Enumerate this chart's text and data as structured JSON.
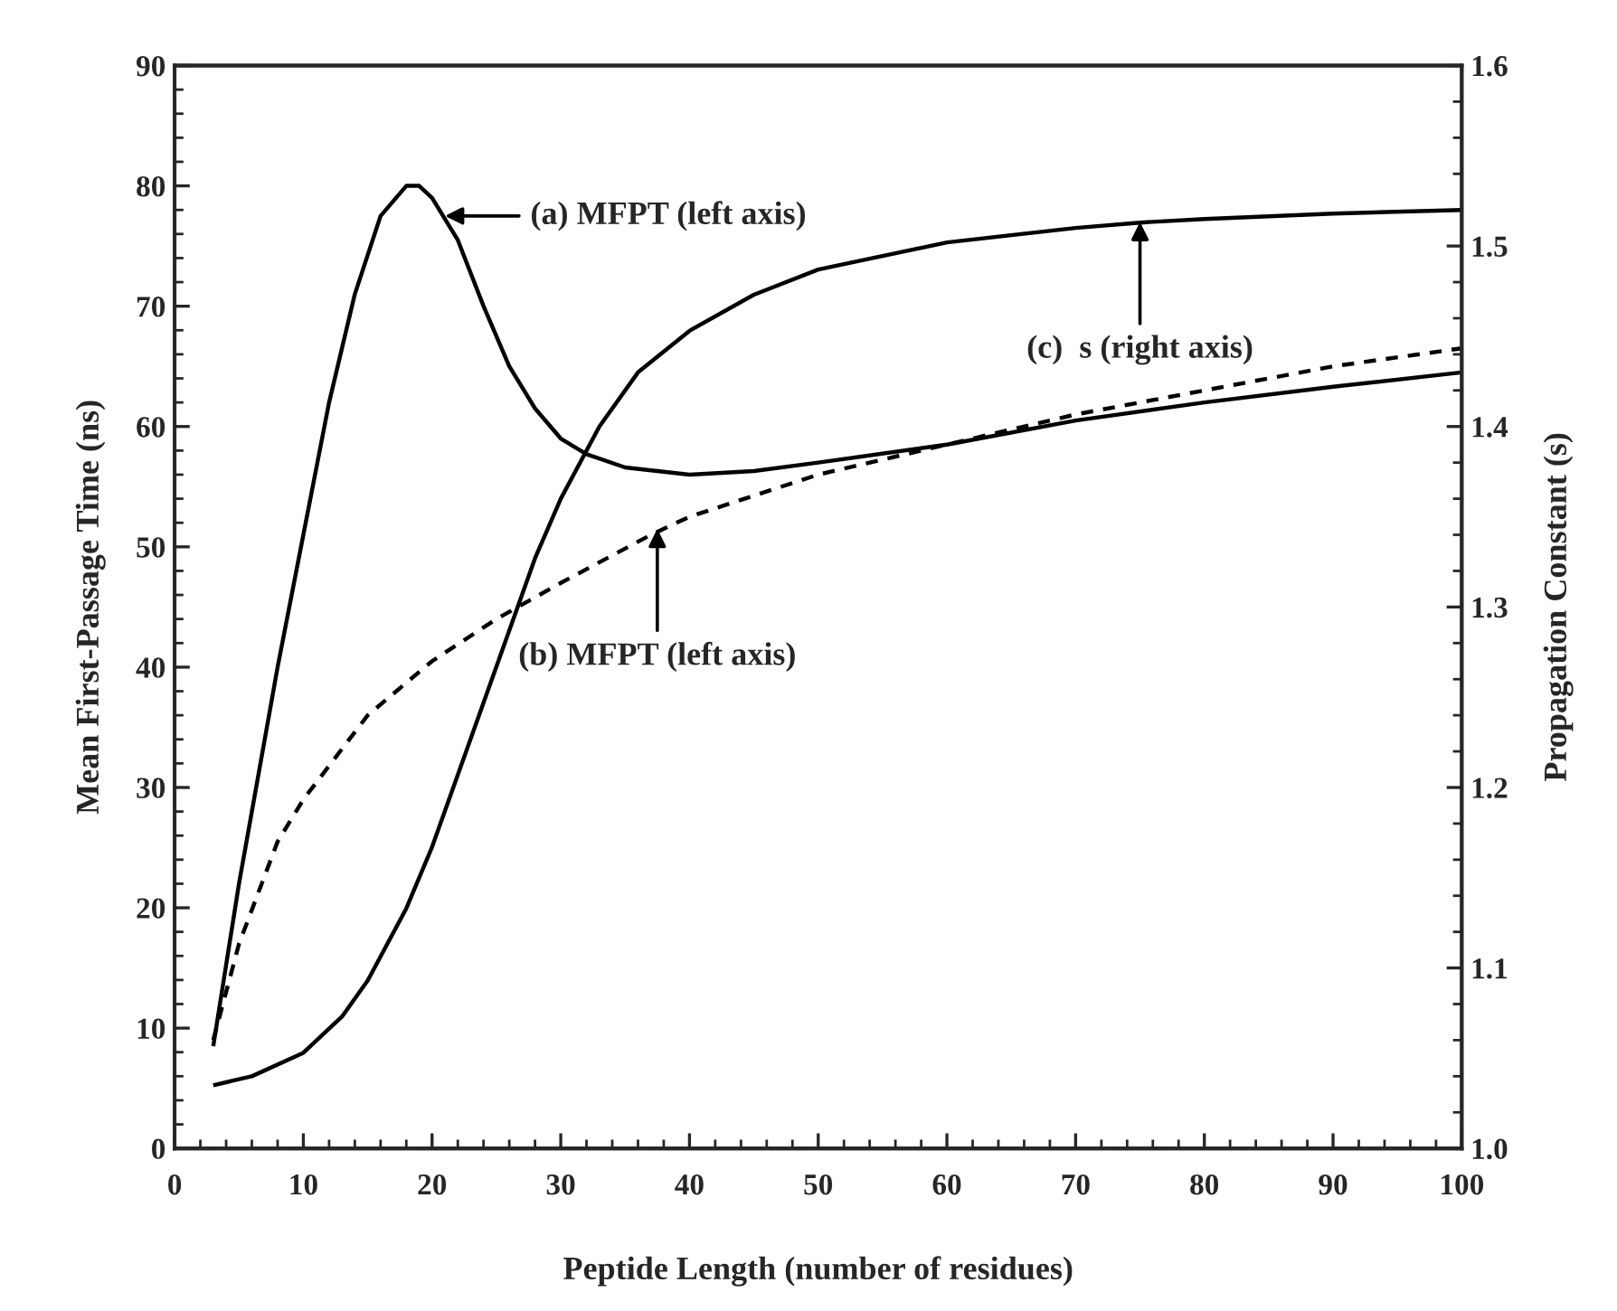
{
  "chart_data": {
    "type": "line",
    "xlabel": "Peptide Length (number of residues)",
    "ylabel": "Mean First-Passage Time (ns)",
    "y2label": "Propagation Constant (s)",
    "xlim": [
      0,
      100
    ],
    "xticks": [
      0,
      10,
      20,
      30,
      40,
      50,
      60,
      70,
      80,
      90,
      100
    ],
    "ylim": [
      0,
      90
    ],
    "yticks": [
      0,
      10,
      20,
      30,
      40,
      50,
      60,
      70,
      80,
      90
    ],
    "y2lim": [
      1.0,
      1.6
    ],
    "y2ticks": [
      {
        "value": 1.0,
        "label": "1.0"
      },
      {
        "value": 1.1,
        "label": "1.1"
      },
      {
        "value": 1.2,
        "label": "1.2"
      },
      {
        "value": 1.3,
        "label": "1.3"
      },
      {
        "value": 1.4,
        "label": "1.4"
      },
      {
        "value": 1.5,
        "label": "1.5"
      },
      {
        "value": 1.6,
        "label": "1.6"
      }
    ],
    "grid": false,
    "legend": false,
    "marker": "none",
    "series": [
      {
        "color": "#000000",
        "line_style": "solid",
        "x": [
          3,
          5,
          8,
          10,
          12,
          14,
          16,
          18,
          19,
          20,
          22,
          24,
          26,
          28,
          30,
          32,
          35,
          40,
          45,
          50,
          60,
          70,
          80,
          90,
          100
        ],
        "values": [
          8.5,
          22,
          40,
          51,
          62,
          71,
          77.5,
          80,
          80,
          79,
          75.5,
          70,
          65,
          61.5,
          59,
          57.7,
          56.6,
          56,
          56.3,
          57,
          58.5,
          60.5,
          62,
          63.3,
          64.5
        ]
      },
      {
        "color": "#000000",
        "line_style": "dashed",
        "x": [
          3,
          5,
          8,
          10,
          15,
          20,
          25,
          30,
          37,
          40,
          50,
          60,
          70,
          80,
          90,
          100
        ],
        "values": [
          9,
          17,
          25.5,
          29,
          36,
          40.5,
          44,
          47,
          51,
          52.5,
          56,
          58.5,
          61,
          63,
          65,
          66.5
        ]
      },
      {
        "color": "#000000",
        "line_style": "solid",
        "axis": "y2",
        "x": [
          3,
          6,
          10,
          13,
          15,
          18,
          20,
          22,
          25,
          28,
          30,
          33,
          36,
          40,
          45,
          50,
          60,
          70,
          75,
          80,
          90,
          100
        ],
        "values": [
          1.035,
          1.04,
          1.053,
          1.073,
          1.093,
          1.133,
          1.167,
          1.207,
          1.267,
          1.327,
          1.36,
          1.4,
          1.43,
          1.453,
          1.473,
          1.487,
          1.502,
          1.51,
          1.513,
          1.515,
          1.518,
          1.52
        ]
      }
    ],
    "annotations": [
      {
        "text": "(a) MFPT (left axis)",
        "x": 21,
        "y": 77.5
      },
      {
        "text": "(b) MFPT (left axis)",
        "x": 37.5,
        "y": 51.5
      },
      {
        "text": "(c)  s (right axis)",
        "x": 75,
        "y": 77
      }
    ]
  }
}
